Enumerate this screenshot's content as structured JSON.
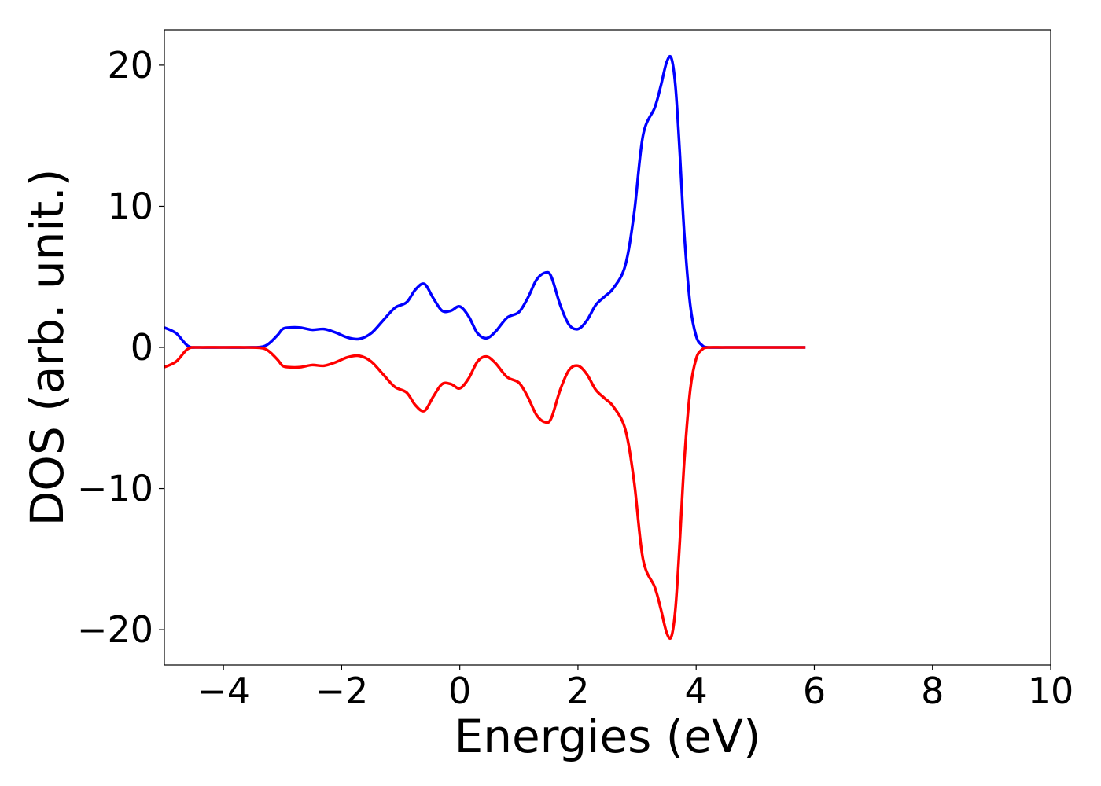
{
  "chart_data": {
    "type": "line",
    "title": "",
    "xlabel": "Energies (eV)",
    "ylabel": "DOS (arb. unit.)",
    "xlim": [
      -5,
      10
    ],
    "ylim": [
      -22.5,
      22.5
    ],
    "grid": false,
    "legend": "none",
    "x_ticks": [
      {
        "value": -4,
        "label": "−4"
      },
      {
        "value": -2,
        "label": "−2"
      },
      {
        "value": 0,
        "label": "0"
      },
      {
        "value": 2,
        "label": "2"
      },
      {
        "value": 4,
        "label": "4"
      },
      {
        "value": 6,
        "label": "6"
      },
      {
        "value": 8,
        "label": "8"
      },
      {
        "value": 10,
        "label": "10"
      }
    ],
    "y_ticks": [
      {
        "value": 20,
        "label": "20"
      },
      {
        "value": 10,
        "label": "10"
      },
      {
        "value": 0,
        "label": "0"
      },
      {
        "value": -10,
        "label": "−10"
      },
      {
        "value": -20,
        "label": "−20"
      }
    ],
    "series": [
      {
        "color": "#0000ff",
        "x": [
          -5.0,
          -4.8,
          -4.6,
          -4.4,
          -4.0,
          -3.6,
          -3.3,
          -3.1,
          -3.0,
          -2.9,
          -2.7,
          -2.5,
          -2.3,
          -2.1,
          -1.9,
          -1.7,
          -1.5,
          -1.3,
          -1.1,
          -0.9,
          -0.75,
          -0.6,
          -0.45,
          -0.3,
          -0.15,
          0.0,
          0.15,
          0.3,
          0.45,
          0.6,
          0.8,
          1.0,
          1.15,
          1.3,
          1.45,
          1.55,
          1.7,
          1.85,
          2.0,
          2.15,
          2.3,
          2.45,
          2.6,
          2.8,
          2.95,
          3.1,
          3.3,
          3.4,
          3.5,
          3.58,
          3.65,
          3.72,
          3.8,
          3.9,
          4.0,
          4.1,
          4.2,
          4.5,
          5.0,
          5.5,
          5.85
        ],
        "values": [
          1.4,
          1.0,
          0.1,
          0.0,
          0.0,
          0.0,
          0.1,
          0.8,
          1.3,
          1.4,
          1.4,
          1.25,
          1.3,
          1.05,
          0.7,
          0.6,
          1.0,
          1.9,
          2.8,
          3.2,
          4.1,
          4.5,
          3.5,
          2.6,
          2.6,
          2.9,
          2.2,
          1.0,
          0.65,
          1.1,
          2.1,
          2.5,
          3.5,
          4.8,
          5.3,
          5.0,
          3.0,
          1.6,
          1.3,
          1.9,
          3.0,
          3.6,
          4.2,
          5.8,
          9.5,
          15.0,
          17.0,
          18.5,
          20.2,
          20.5,
          18.5,
          14.0,
          8.0,
          3.0,
          0.8,
          0.15,
          0.0,
          0.0,
          0.0,
          0.0,
          0.0
        ]
      },
      {
        "color": "#ff0000",
        "x": [
          -5.0,
          -4.8,
          -4.6,
          -4.4,
          -4.0,
          -3.6,
          -3.3,
          -3.1,
          -3.0,
          -2.9,
          -2.7,
          -2.5,
          -2.3,
          -2.1,
          -1.9,
          -1.7,
          -1.5,
          -1.3,
          -1.1,
          -0.9,
          -0.75,
          -0.6,
          -0.45,
          -0.3,
          -0.15,
          0.0,
          0.15,
          0.3,
          0.45,
          0.6,
          0.8,
          1.0,
          1.15,
          1.3,
          1.45,
          1.55,
          1.7,
          1.85,
          2.0,
          2.15,
          2.3,
          2.45,
          2.6,
          2.8,
          2.95,
          3.1,
          3.3,
          3.4,
          3.5,
          3.58,
          3.65,
          3.72,
          3.8,
          3.9,
          4.0,
          4.1,
          4.2,
          4.5,
          5.0,
          5.5,
          5.85
        ],
        "values": [
          -1.4,
          -1.0,
          -0.1,
          0.0,
          0.0,
          0.0,
          -0.1,
          -0.8,
          -1.3,
          -1.4,
          -1.4,
          -1.25,
          -1.3,
          -1.05,
          -0.7,
          -0.6,
          -1.0,
          -1.9,
          -2.8,
          -3.2,
          -4.1,
          -4.5,
          -3.5,
          -2.6,
          -2.6,
          -2.9,
          -2.2,
          -1.0,
          -0.65,
          -1.1,
          -2.1,
          -2.5,
          -3.5,
          -4.8,
          -5.3,
          -5.0,
          -3.0,
          -1.6,
          -1.3,
          -1.9,
          -3.0,
          -3.6,
          -4.2,
          -5.8,
          -9.5,
          -15.0,
          -17.0,
          -18.5,
          -20.2,
          -20.5,
          -18.5,
          -14.0,
          -8.0,
          -3.0,
          -0.8,
          -0.15,
          0.0,
          0.0,
          0.0,
          0.0,
          0.0
        ]
      }
    ]
  }
}
